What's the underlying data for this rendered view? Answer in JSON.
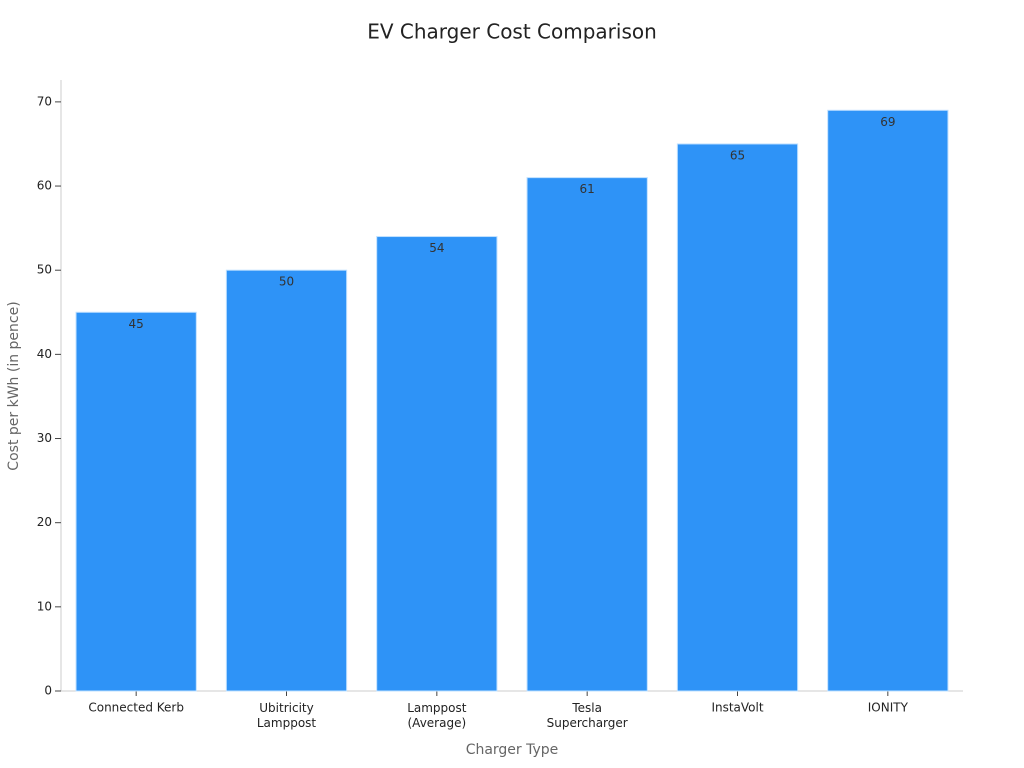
{
  "chart_data": {
    "type": "bar",
    "title": "EV Charger Cost Comparison",
    "x_label": "Charger Type",
    "y_label": "Cost per kWh (in pence)",
    "categories": [
      "Connected Kerb",
      "Ubitricity\nLamppost",
      "Lamppost\n(Average)",
      "Tesla\nSupercharger",
      "InstaVolt",
      "IONITY"
    ],
    "values": [
      45,
      50,
      54,
      61,
      65,
      69
    ],
    "color": "#2e93f7",
    "ylim": [
      0,
      72.6
    ],
    "yticks": [
      0,
      10,
      20,
      30,
      40,
      50,
      60,
      70
    ],
    "grid": false
  }
}
